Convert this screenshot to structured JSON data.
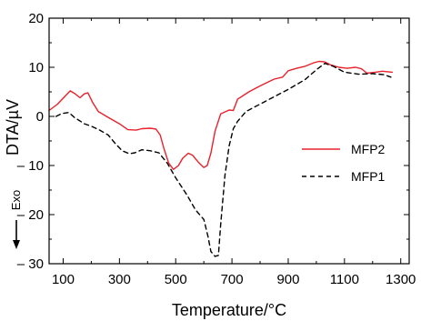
{
  "chart_data": {
    "type": "line",
    "title": "",
    "xlabel": "Temperature/°C",
    "ylabel": "DTA/µV",
    "xlim": [
      50,
      1330
    ],
    "ylim": [
      -30,
      20
    ],
    "x_ticks": [
      100,
      300,
      500,
      700,
      900,
      1100,
      1300
    ],
    "y_ticks": [
      -30,
      -20,
      -10,
      0,
      10,
      20
    ],
    "y_tick_labels": [
      "– 30",
      "– 20",
      "– 10",
      "0",
      "10",
      "20"
    ],
    "grid": false,
    "legend_position": "right",
    "annotation": "Exo",
    "series": [
      {
        "name": "MFP2",
        "color": "#e8212b",
        "dash": "solid",
        "points": [
          [
            50,
            1.2
          ],
          [
            80,
            2.5
          ],
          [
            105,
            4.0
          ],
          [
            125,
            5.2
          ],
          [
            140,
            4.7
          ],
          [
            160,
            3.8
          ],
          [
            175,
            4.6
          ],
          [
            188,
            4.8
          ],
          [
            205,
            2.8
          ],
          [
            225,
            1.0
          ],
          [
            260,
            -0.2
          ],
          [
            300,
            -1.5
          ],
          [
            330,
            -2.7
          ],
          [
            360,
            -2.8
          ],
          [
            380,
            -2.5
          ],
          [
            410,
            -2.4
          ],
          [
            430,
            -2.6
          ],
          [
            445,
            -3.8
          ],
          [
            458,
            -6.5
          ],
          [
            475,
            -9.5
          ],
          [
            492,
            -10.8
          ],
          [
            510,
            -10.0
          ],
          [
            525,
            -8.5
          ],
          [
            545,
            -7.5
          ],
          [
            560,
            -7.9
          ],
          [
            580,
            -9.3
          ],
          [
            600,
            -10.4
          ],
          [
            612,
            -10.0
          ],
          [
            625,
            -7.5
          ],
          [
            640,
            -3.0
          ],
          [
            660,
            0.5
          ],
          [
            690,
            1.3
          ],
          [
            705,
            1.2
          ],
          [
            720,
            3.5
          ],
          [
            760,
            5.0
          ],
          [
            800,
            6.2
          ],
          [
            850,
            7.6
          ],
          [
            880,
            8.0
          ],
          [
            900,
            9.3
          ],
          [
            930,
            9.8
          ],
          [
            960,
            10.2
          ],
          [
            990,
            10.9
          ],
          [
            1010,
            11.2
          ],
          [
            1030,
            11.1
          ],
          [
            1050,
            10.5
          ],
          [
            1080,
            10.0
          ],
          [
            1110,
            9.8
          ],
          [
            1140,
            10.0
          ],
          [
            1160,
            9.7
          ],
          [
            1180,
            8.8
          ],
          [
            1210,
            9.0
          ],
          [
            1235,
            9.2
          ],
          [
            1270,
            9.0
          ]
        ]
      },
      {
        "name": "MFP1",
        "color": "#000000",
        "dash": "dashed",
        "points": [
          [
            75,
            0.0
          ],
          [
            95,
            0.6
          ],
          [
            120,
            0.8
          ],
          [
            140,
            -0.2
          ],
          [
            175,
            -1.5
          ],
          [
            200,
            -2.0
          ],
          [
            230,
            -2.8
          ],
          [
            260,
            -3.8
          ],
          [
            285,
            -5.5
          ],
          [
            310,
            -7.0
          ],
          [
            335,
            -7.6
          ],
          [
            355,
            -7.4
          ],
          [
            380,
            -6.8
          ],
          [
            410,
            -7.0
          ],
          [
            440,
            -7.4
          ],
          [
            470,
            -9.5
          ],
          [
            500,
            -12.5
          ],
          [
            540,
            -16.0
          ],
          [
            570,
            -19.0
          ],
          [
            600,
            -21.0
          ],
          [
            615,
            -24.5
          ],
          [
            625,
            -27.5
          ],
          [
            640,
            -28.5
          ],
          [
            652,
            -28.3
          ],
          [
            660,
            -22.0
          ],
          [
            675,
            -12.0
          ],
          [
            690,
            -6.0
          ],
          [
            705,
            -2.5
          ],
          [
            720,
            -1.0
          ],
          [
            750,
            1.0
          ],
          [
            800,
            2.5
          ],
          [
            850,
            4.0
          ],
          [
            900,
            5.5
          ],
          [
            960,
            7.5
          ],
          [
            1000,
            9.5
          ],
          [
            1030,
            10.8
          ],
          [
            1060,
            10.2
          ],
          [
            1100,
            9.0
          ],
          [
            1150,
            8.6
          ],
          [
            1200,
            8.7
          ],
          [
            1240,
            8.5
          ],
          [
            1265,
            8.0
          ]
        ]
      }
    ]
  }
}
